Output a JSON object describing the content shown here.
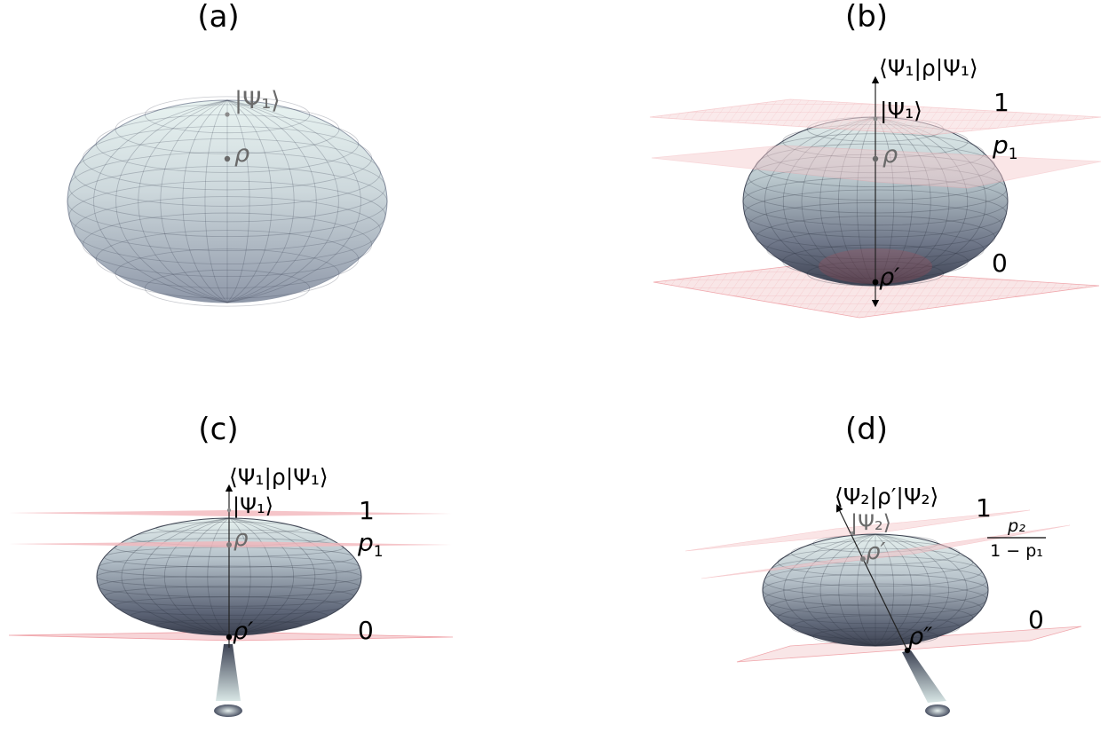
{
  "panels": [
    {
      "id": "a",
      "label": "(a)",
      "state_labels": {
        "psi": "|Ψ₁⟩",
        "rho": "ρ"
      }
    },
    {
      "id": "b",
      "label": "(b)",
      "axis_label": "⟨Ψ₁|ρ|Ψ₁⟩",
      "state_labels": {
        "psi": "|Ψ₁⟩",
        "rho": "ρ",
        "rho_prime": "ρ′"
      },
      "levels": {
        "top": "1",
        "middle_base": "p",
        "middle_sub": "1",
        "bottom": "0"
      }
    },
    {
      "id": "c",
      "label": "(c)",
      "axis_label": "⟨Ψ₁|ρ|Ψ₁⟩",
      "state_labels": {
        "psi": "|Ψ₁⟩",
        "rho": "ρ",
        "rho_prime": "ρ′"
      },
      "levels": {
        "top": "1",
        "middle_base": "p",
        "middle_sub": "1",
        "bottom": "0"
      }
    },
    {
      "id": "d",
      "label": "(d)",
      "axis_label": "⟨Ψ₂|ρ′|Ψ₂⟩",
      "state_labels": {
        "psi": "|Ψ₂⟩",
        "rho_prime": "ρ′",
        "rho_double_prime": "ρ″"
      },
      "levels": {
        "top": "1",
        "fraction_numerator": "p₂",
        "fraction_denominator": "1 − p₁",
        "bottom": "0"
      }
    }
  ],
  "colors": {
    "sphere_light": "#e6f1f0",
    "sphere_mid": "#aab5c1",
    "sphere_dark": "#4e5668",
    "plane_fill": "#f7dfe0",
    "plane_grid": "#f0a8ad",
    "mesh": "#2c3240",
    "label_gray": "#6a6a6a"
  }
}
